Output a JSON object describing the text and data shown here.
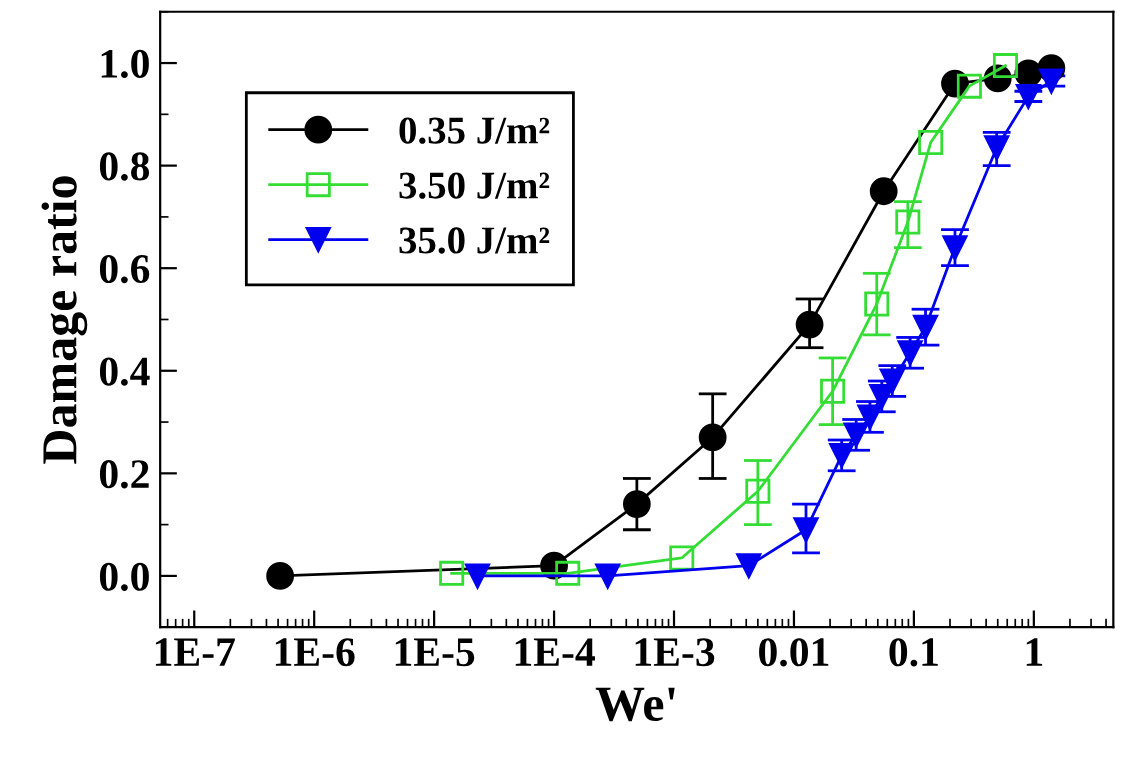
{
  "chart_data": {
    "type": "line",
    "xlabel": "We'",
    "ylabel": "Damage ratio",
    "log": "x",
    "xlim": [
      5.2e-08,
      4.6
    ],
    "ylim": [
      -0.1,
      1.1
    ],
    "xticks": [
      {
        "value": 1e-07,
        "label": "1E-7"
      },
      {
        "value": 1e-06,
        "label": "1E-6"
      },
      {
        "value": 1e-05,
        "label": "1E-5"
      },
      {
        "value": 0.0001,
        "label": "1E-4"
      },
      {
        "value": 0.001,
        "label": "1E-3"
      },
      {
        "value": 0.01,
        "label": "0.01"
      },
      {
        "value": 0.1,
        "label": "0.1"
      },
      {
        "value": 1,
        "label": "1"
      }
    ],
    "yticks": [
      {
        "value": 0,
        "label": "0.0"
      },
      {
        "value": 0.2,
        "label": "0.2"
      },
      {
        "value": 0.4,
        "label": "0.4"
      },
      {
        "value": 0.6,
        "label": "0.6"
      },
      {
        "value": 0.8,
        "label": "0.8"
      },
      {
        "value": 1.0,
        "label": "1.0"
      }
    ],
    "legend": "top left",
    "grid": false,
    "line_style": "solid",
    "series": [
      {
        "name": "0.35 J/m²",
        "color": "#000000",
        "marker": "circle",
        "x": [
          5.2e-07,
          0.0001,
          0.00049,
          0.0021,
          0.0135,
          0.056,
          0.22,
          0.5,
          0.9,
          1.4
        ],
        "values": [
          0,
          0.02,
          0.14,
          0.27,
          0.49,
          0.75,
          0.96,
          0.97,
          0.98,
          0.99
        ],
        "errors": [
          null,
          null,
          [
            0.09,
            0.19
          ],
          [
            0.19,
            0.355
          ],
          [
            0.445,
            0.54
          ],
          null,
          null,
          null,
          null,
          null
        ]
      },
      {
        "name": "3.50 J/m²",
        "color": "#33dd33",
        "marker": "square",
        "x": [
          1.4e-05,
          0.00013,
          0.00116,
          0.005,
          0.021,
          0.049,
          0.089,
          0.138,
          0.29,
          0.58
        ],
        "values": [
          0.005,
          0.005,
          0.035,
          0.165,
          0.36,
          0.53,
          0.69,
          0.845,
          0.955,
          0.995
        ],
        "errors": [
          null,
          null,
          null,
          [
            0.1,
            0.225
          ],
          [
            0.295,
            0.425
          ],
          [
            0.47,
            0.59
          ],
          [
            0.64,
            0.73
          ],
          null,
          null,
          null
        ]
      },
      {
        "name": "35.0 J/m²",
        "color": "#0000ee",
        "marker": "triangle",
        "x": [
          2.3e-05,
          0.00028,
          0.0042,
          0.0126,
          0.025,
          0.033,
          0.043,
          0.054,
          0.066,
          0.093,
          0.125,
          0.22,
          0.49,
          0.9,
          1.4
        ],
        "values": [
          0,
          0,
          0.02,
          0.09,
          0.235,
          0.275,
          0.31,
          0.35,
          0.38,
          0.435,
          0.485,
          0.64,
          0.835,
          0.935,
          0.965
        ],
        "errors": [
          null,
          null,
          null,
          [
            0.045,
            0.14
          ],
          0.03,
          0.03,
          0.03,
          0.03,
          0.03,
          0.03,
          0.035,
          0.035,
          [
            0.8,
            0.865
          ],
          0.01,
          0.01
        ]
      }
    ]
  }
}
